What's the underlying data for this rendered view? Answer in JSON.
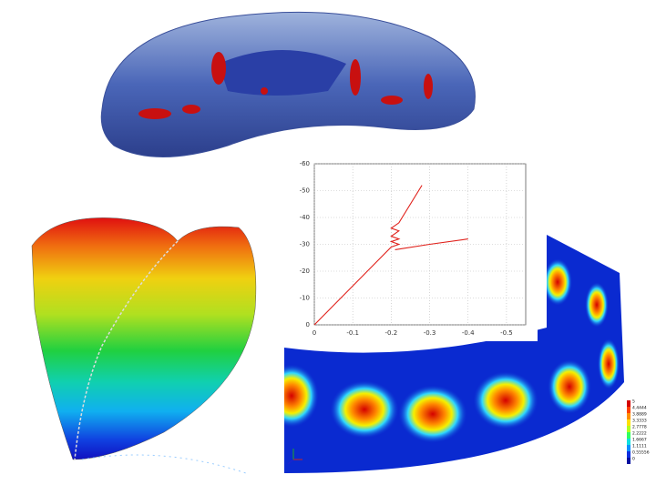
{
  "chart_data": {
    "type": "line",
    "color": "#e0201a",
    "x": [
      0,
      -0.2,
      -0.22,
      -0.2,
      -0.22,
      -0.2,
      -0.22,
      -0.2,
      -0.22,
      -0.28,
      null,
      -0.21,
      -0.3,
      -0.4
    ],
    "values": [
      0,
      -29,
      -30,
      -31,
      -32,
      -33,
      -35,
      -36,
      -38,
      -52,
      null,
      -28,
      -30,
      -32
    ],
    "xlim": [
      0,
      -0.55
    ],
    "xticks": [
      0,
      -0.1,
      -0.2,
      -0.3,
      -0.4,
      -0.5
    ],
    "ylim": [
      0,
      -60
    ],
    "yticks": [
      0,
      -10,
      -20,
      -30,
      -40,
      -50,
      -60
    ],
    "grid": true
  },
  "colorbar": {
    "labels": [
      5,
      4.4444,
      3.8889,
      3.3333,
      2.7778,
      2.2222,
      1.6667,
      1.1111,
      0.55556,
      0
    ]
  }
}
